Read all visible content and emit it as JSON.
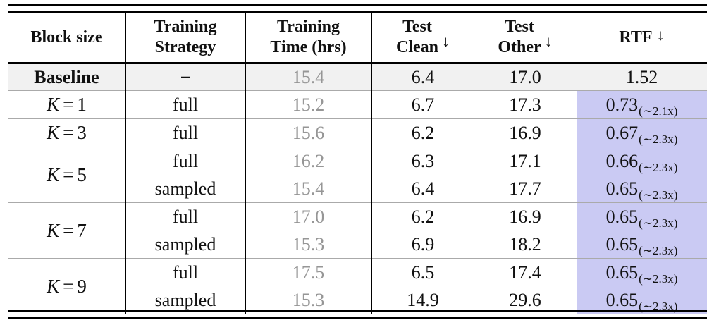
{
  "colors": {
    "highlight": "#cacaf3",
    "baseline_row_bg": "#f1f1f1",
    "muted_text": "#969696",
    "rule_dark": "#000000",
    "rule_light": "#aaaaaa"
  },
  "header": {
    "block_size": "Block size",
    "training_strategy_line1": "Training",
    "training_strategy_line2": "Strategy",
    "training_time_line1": "Training",
    "training_time_line2": "Time (hrs)",
    "test_clean_line1": "Test",
    "test_clean_line2": "Clean",
    "test_other_line1": "Test",
    "test_other_line2": "Other",
    "rtf": "RTF",
    "down_arrow": "↓"
  },
  "math": {
    "k": "K",
    "eq": "="
  },
  "baseline": {
    "label": "Baseline",
    "strategy": "−",
    "time": "15.4",
    "clean": "6.4",
    "other": "17.0",
    "rtf": "1.52"
  },
  "rows": [
    {
      "k": "1",
      "strategy": "full",
      "time": "15.2",
      "clean": "6.7",
      "other": "17.3",
      "rtf": "0.73",
      "rtf_sub": "(∼2.1x)"
    },
    {
      "k": "3",
      "strategy": "full",
      "time": "15.6",
      "clean": "6.2",
      "other": "16.9",
      "rtf": "0.67",
      "rtf_sub": "(∼2.3x)"
    },
    {
      "k": "5",
      "strategy": "full",
      "time": "16.2",
      "clean": "6.3",
      "other": "17.1",
      "rtf": "0.66",
      "rtf_sub": "(∼2.3x)"
    },
    {
      "k": "5",
      "strategy": "sampled",
      "time": "15.4",
      "clean": "6.4",
      "other": "17.7",
      "rtf": "0.65",
      "rtf_sub": "(∼2.3x)"
    },
    {
      "k": "7",
      "strategy": "full",
      "time": "17.0",
      "clean": "6.2",
      "other": "16.9",
      "rtf": "0.65",
      "rtf_sub": "(∼2.3x)"
    },
    {
      "k": "7",
      "strategy": "sampled",
      "time": "15.3",
      "clean": "6.9",
      "other": "18.2",
      "rtf": "0.65",
      "rtf_sub": "(∼2.3x)"
    },
    {
      "k": "9",
      "strategy": "full",
      "time": "17.5",
      "clean": "6.5",
      "other": "17.4",
      "rtf": "0.65",
      "rtf_sub": "(∼2.3x)"
    },
    {
      "k": "9",
      "strategy": "sampled",
      "time": "15.3",
      "clean": "14.9",
      "other": "29.6",
      "rtf": "0.65",
      "rtf_sub": "(∼2.3x)"
    }
  ]
}
